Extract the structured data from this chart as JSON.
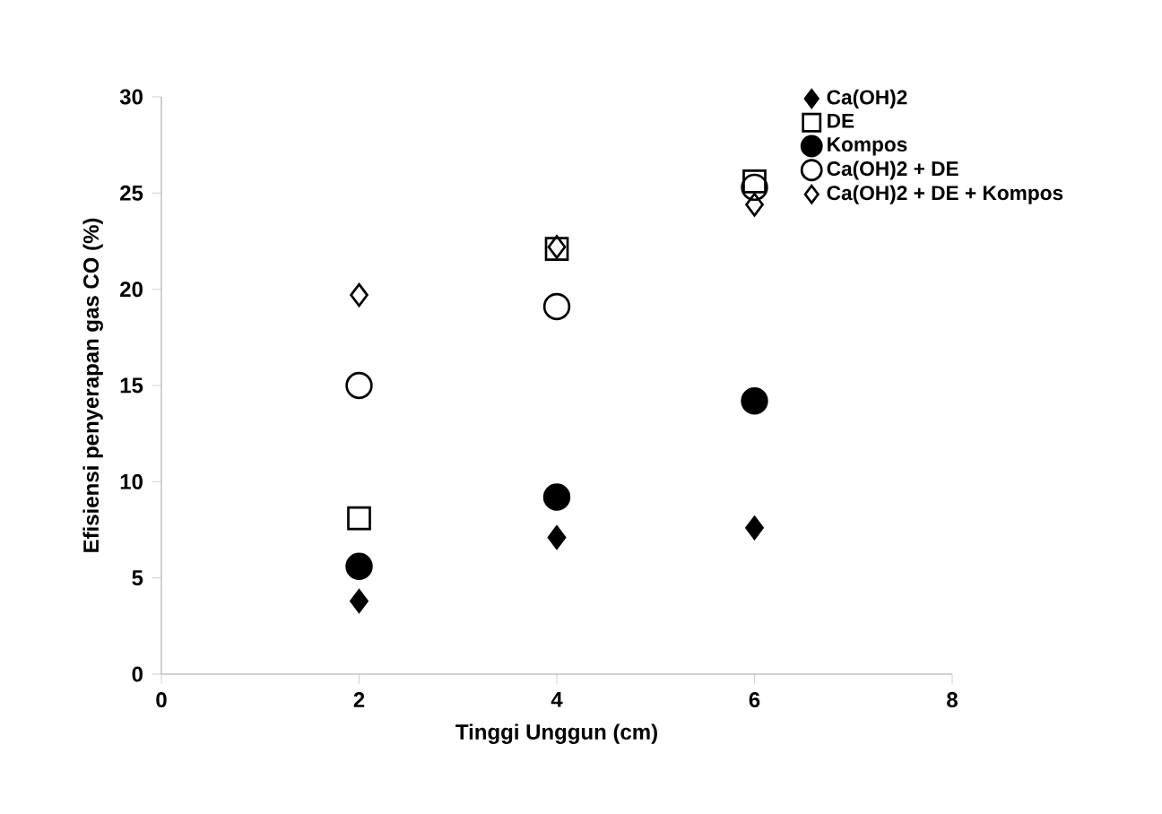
{
  "chart_data": {
    "type": "scatter",
    "xlabel": "Tinggi Unggun (cm)",
    "ylabel": "Efisiensi penyerapan gas CO (%)",
    "x": [
      2,
      4,
      6
    ],
    "series": [
      {
        "name": "Ca(OH)2",
        "color": "#000000",
        "marker": "diamond",
        "values": [
          3.8,
          7.1,
          7.6
        ]
      },
      {
        "name": "DE",
        "color": "#000000",
        "marker": "square-open",
        "values": [
          8.1,
          22.1,
          25.6
        ]
      },
      {
        "name": "Kompos",
        "color": "#000000",
        "marker": "circle",
        "values": [
          5.6,
          9.2,
          14.2
        ]
      },
      {
        "name": "Ca(OH)2 + DE",
        "color": "#000000",
        "marker": "circle-open",
        "values": [
          15.0,
          19.1,
          25.3
        ]
      },
      {
        "name": "Ca(OH)2 + DE + Kompos",
        "color": "#000000",
        "marker": "diamond-open",
        "values": [
          19.7,
          22.2,
          24.4
        ]
      }
    ],
    "xlim": [
      0,
      8
    ],
    "xticks": [
      0,
      2,
      4,
      6,
      8
    ],
    "ylim": [
      0,
      30
    ],
    "yticks": [
      0,
      5,
      10,
      15,
      20,
      25,
      30
    ],
    "grid": false,
    "legend": "top right"
  }
}
